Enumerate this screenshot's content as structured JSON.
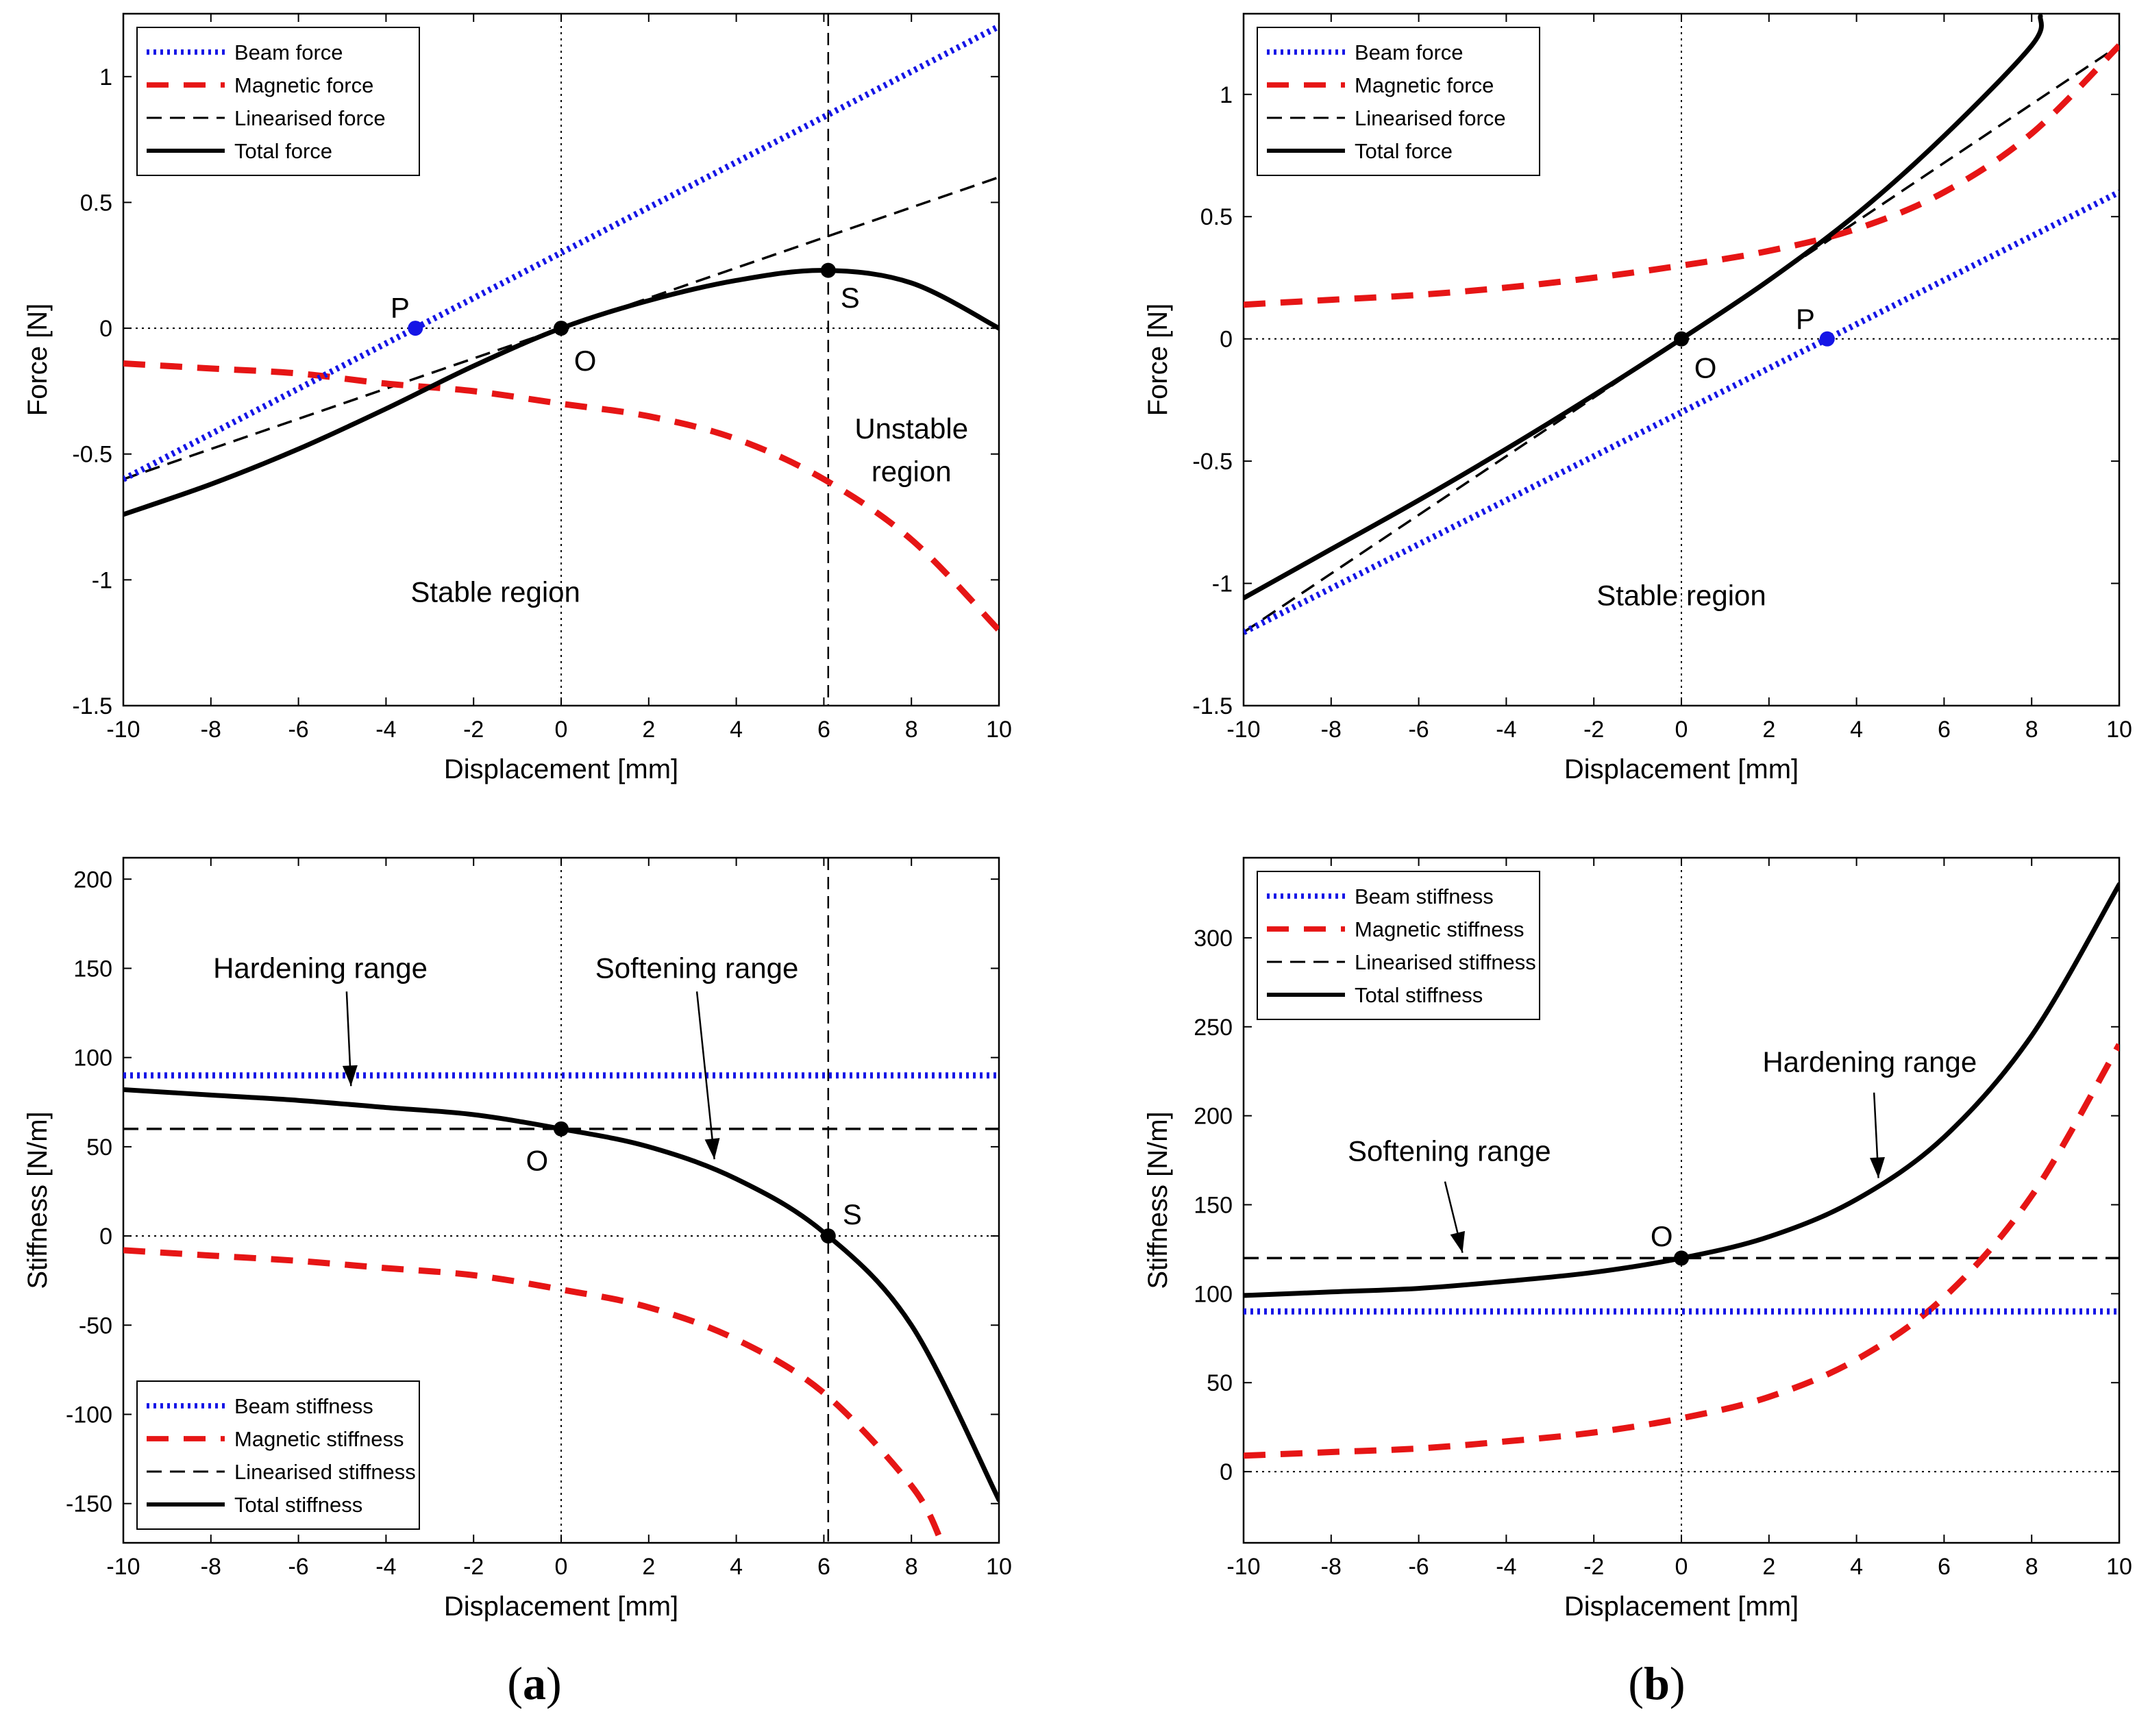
{
  "figure": {
    "captions": {
      "a": "a",
      "b": "b"
    }
  },
  "chart_data": [
    {
      "id": "a-force",
      "type": "line",
      "xlabel": "Displacement [mm]",
      "ylabel": "Force [N]",
      "xlim": [
        -10,
        10
      ],
      "ylim": [
        -1.5,
        1.25
      ],
      "xticks": [
        -10,
        -8,
        -6,
        -4,
        -2,
        0,
        2,
        4,
        6,
        8,
        10
      ],
      "yticks": [
        -1.5,
        -1,
        -0.5,
        0,
        0.5,
        1
      ],
      "legend_position": "top-left",
      "series": [
        {
          "name": "Beam force",
          "style": "dotted",
          "color": "#1515e6",
          "x": [
            -10,
            10
          ],
          "y": [
            -0.6,
            1.2
          ]
        },
        {
          "name": "Magnetic force",
          "style": "dashed",
          "color": "#e61515",
          "x": [
            -10,
            -8,
            -6,
            -4,
            -2,
            0,
            2,
            4,
            6,
            8,
            10
          ],
          "y": [
            -0.14,
            -0.16,
            -0.18,
            -0.22,
            -0.25,
            -0.3,
            -0.35,
            -0.44,
            -0.6,
            -0.84,
            -1.2
          ]
        },
        {
          "name": "Linearised force",
          "style": "dashed-thin",
          "color": "#000000",
          "x": [
            -10,
            10
          ],
          "y": [
            -0.6,
            0.6
          ]
        },
        {
          "name": "Total force",
          "style": "solid",
          "color": "#000000",
          "x": [
            -10,
            -8,
            -6,
            -4,
            -2,
            0,
            2,
            4,
            6,
            8,
            10
          ],
          "y": [
            -0.74,
            -0.62,
            -0.48,
            -0.32,
            -0.15,
            0,
            0.11,
            0.19,
            0.23,
            0.18,
            0
          ]
        }
      ],
      "points": [
        {
          "label": "P",
          "x": -3.33,
          "y": 0,
          "color": "#1515e6",
          "label_dx": -0.35,
          "label_dy": 0.08
        },
        {
          "label": "O",
          "x": 0,
          "y": 0,
          "color": "#000000",
          "label_dx": 0.55,
          "label_dy": -0.13
        },
        {
          "label": "S",
          "x": 6.1,
          "y": 0.23,
          "color": "#000000",
          "label_dx": 0.5,
          "label_dy": -0.11
        }
      ],
      "vlines": [
        {
          "x": 0,
          "style": "dotted"
        },
        {
          "x": 6.1,
          "style": "dashed"
        }
      ],
      "hlines": [
        {
          "y": 0,
          "style": "dotted"
        }
      ],
      "annotations": [
        {
          "text": "Stable region",
          "x": -1.5,
          "y": -1.05
        },
        {
          "text": "Unstable",
          "x": 8.0,
          "y": -0.4
        },
        {
          "text": "region",
          "x": 8.0,
          "y": -0.57
        }
      ]
    },
    {
      "id": "b-force",
      "type": "line",
      "xlabel": "Displacement [mm]",
      "ylabel": "Force [N]",
      "xlim": [
        -10,
        10
      ],
      "ylim": [
        -1.5,
        1.33
      ],
      "xticks": [
        -10,
        -8,
        -6,
        -4,
        -2,
        0,
        2,
        4,
        6,
        8,
        10
      ],
      "yticks": [
        -1.5,
        -1,
        -0.5,
        0,
        0.5,
        1
      ],
      "legend_position": "top-left",
      "series": [
        {
          "name": "Beam force",
          "style": "dotted",
          "color": "#1515e6",
          "x": [
            -10,
            10
          ],
          "y": [
            -1.2,
            0.6
          ]
        },
        {
          "name": "Magnetic force",
          "style": "dashed",
          "color": "#e61515",
          "x": [
            -10,
            -8,
            -6,
            -4,
            -2,
            0,
            2,
            4,
            6,
            8,
            10
          ],
          "y": [
            0.14,
            0.16,
            0.18,
            0.21,
            0.25,
            0.3,
            0.36,
            0.45,
            0.6,
            0.84,
            1.2
          ]
        },
        {
          "name": "Linearised force",
          "style": "dashed-thin",
          "color": "#000000",
          "x": [
            -10,
            10
          ],
          "y": [
            -1.2,
            1.2
          ]
        },
        {
          "name": "Total force",
          "style": "solid",
          "color": "#000000",
          "x": [
            -10,
            -8,
            -6,
            -4,
            -2,
            0,
            2,
            4,
            6,
            8,
            8.2
          ],
          "y": [
            -1.06,
            -0.86,
            -0.66,
            -0.45,
            -0.23,
            0,
            0.24,
            0.51,
            0.83,
            1.2,
            1.32
          ]
        }
      ],
      "points": [
        {
          "label": "O",
          "x": 0,
          "y": 0,
          "color": "#000000",
          "label_dx": 0.55,
          "label_dy": -0.12
        },
        {
          "label": "P",
          "x": 3.33,
          "y": 0,
          "color": "#1515e6",
          "label_dx": -0.5,
          "label_dy": 0.08
        }
      ],
      "vlines": [
        {
          "x": 0,
          "style": "dotted"
        }
      ],
      "hlines": [
        {
          "y": 0,
          "style": "dotted"
        }
      ],
      "annotations": [
        {
          "text": "Stable region",
          "x": 0,
          "y": -1.05
        }
      ]
    },
    {
      "id": "a-stiffness",
      "type": "line",
      "xlabel": "Displacement [mm]",
      "ylabel": "Stiffness [N/m]",
      "xlim": [
        -10,
        10
      ],
      "ylim": [
        -172,
        212
      ],
      "xticks": [
        -10,
        -8,
        -6,
        -4,
        -2,
        0,
        2,
        4,
        6,
        8,
        10
      ],
      "yticks": [
        -150,
        -100,
        -50,
        0,
        50,
        100,
        150,
        200
      ],
      "legend_position": "bottom-left",
      "series": [
        {
          "name": "Beam stiffness",
          "style": "dotted",
          "color": "#1515e6",
          "x": [
            -10,
            10
          ],
          "y": [
            90,
            90
          ]
        },
        {
          "name": "Magnetic stiffness",
          "style": "dashed",
          "color": "#e61515",
          "x": [
            -10,
            -8,
            -6,
            -4,
            -2,
            0,
            2,
            4,
            6,
            8,
            8.7
          ],
          "y": [
            -8,
            -11,
            -14,
            -18,
            -22,
            -30,
            -40,
            -58,
            -88,
            -140,
            -172
          ]
        },
        {
          "name": "Linearised stiffness",
          "style": "dashed-thin",
          "color": "#000000",
          "x": [
            -10,
            10
          ],
          "y": [
            60,
            60
          ]
        },
        {
          "name": "Total stiffness",
          "style": "solid",
          "color": "#000000",
          "x": [
            -10,
            -8,
            -6,
            -4,
            -2,
            0,
            2,
            4,
            6,
            8,
            10
          ],
          "y": [
            82,
            79,
            76,
            72,
            68,
            60,
            50,
            32,
            2,
            -50,
            -148
          ]
        }
      ],
      "points": [
        {
          "label": "O",
          "x": 0,
          "y": 60,
          "color": "#000000",
          "label_dx": -0.55,
          "label_dy": -18
        },
        {
          "label": "S",
          "x": 6.1,
          "y": 0,
          "color": "#000000",
          "label_dx": 0.55,
          "label_dy": 12
        }
      ],
      "vlines": [
        {
          "x": 0,
          "style": "dotted"
        },
        {
          "x": 6.1,
          "style": "dashed"
        }
      ],
      "hlines": [
        {
          "y": 0,
          "style": "dotted"
        }
      ],
      "annotations": [
        {
          "text": "Hardening range",
          "x": -5.5,
          "y": 150
        },
        {
          "text": "Softening range",
          "x": 3.1,
          "y": 150
        }
      ],
      "arrows": [
        {
          "from": [
            -4.9,
            137
          ],
          "to": [
            -4.8,
            84
          ]
        },
        {
          "from": [
            3.1,
            137
          ],
          "to": [
            3.5,
            43
          ]
        }
      ]
    },
    {
      "id": "b-stiffness",
      "type": "line",
      "xlabel": "Displacement [mm]",
      "ylabel": "Stiffness [N/m]",
      "xlim": [
        -10,
        10
      ],
      "ylim": [
        -40,
        345
      ],
      "xticks": [
        -10,
        -8,
        -6,
        -4,
        -2,
        0,
        2,
        4,
        6,
        8,
        10
      ],
      "yticks": [
        0,
        50,
        100,
        150,
        200,
        250,
        300
      ],
      "legend_position": "top-left",
      "series": [
        {
          "name": "Beam stiffness",
          "style": "dotted",
          "color": "#1515e6",
          "x": [
            -10,
            10
          ],
          "y": [
            90,
            90
          ]
        },
        {
          "name": "Magnetic stiffness",
          "style": "dashed",
          "color": "#e61515",
          "x": [
            -10,
            -8,
            -6,
            -4,
            -2,
            0,
            2,
            4,
            6,
            8,
            10
          ],
          "y": [
            9,
            11,
            13,
            17,
            22,
            30,
            42,
            63,
            98,
            155,
            240
          ]
        },
        {
          "name": "Linearised stiffness",
          "style": "dashed-thin",
          "color": "#000000",
          "x": [
            -10,
            10
          ],
          "y": [
            120,
            120
          ]
        },
        {
          "name": "Total stiffness",
          "style": "solid",
          "color": "#000000",
          "x": [
            -10,
            -8,
            -6,
            -4,
            -2,
            0,
            2,
            4,
            6,
            8,
            10
          ],
          "y": [
            99,
            101,
            103,
            107,
            112,
            120,
            132,
            153,
            188,
            245,
            330
          ]
        }
      ],
      "points": [
        {
          "label": "O",
          "x": 0,
          "y": 120,
          "color": "#000000",
          "label_dx": -0.45,
          "label_dy": 12
        }
      ],
      "vlines": [
        {
          "x": 0,
          "style": "dotted"
        }
      ],
      "hlines": [
        {
          "y": 0,
          "style": "dotted"
        }
      ],
      "annotations": [
        {
          "text": "Softening range",
          "x": -5.3,
          "y": 180
        },
        {
          "text": "Hardening range",
          "x": 4.3,
          "y": 230
        }
      ],
      "arrows": [
        {
          "from": [
            -5.4,
            163
          ],
          "to": [
            -5.0,
            123
          ]
        },
        {
          "from": [
            4.4,
            213
          ],
          "to": [
            4.5,
            165
          ]
        }
      ]
    }
  ]
}
